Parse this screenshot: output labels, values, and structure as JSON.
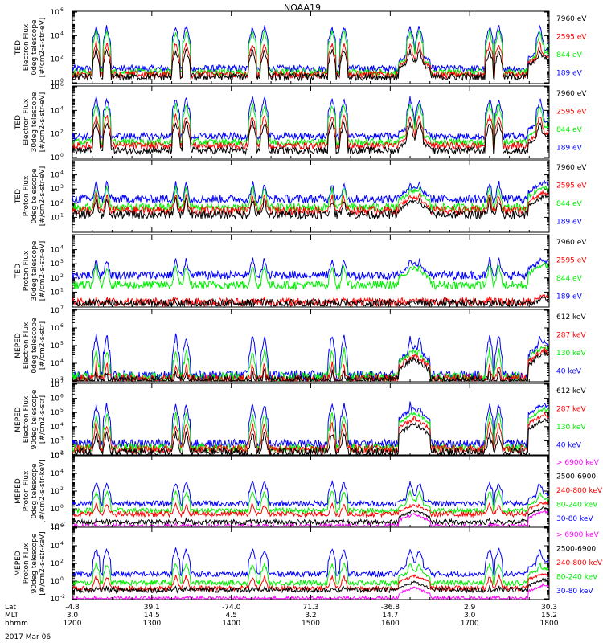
{
  "title": "NOAA19",
  "date_label": "2017 Mar 06",
  "colors": {
    "black": "#000000",
    "red": "#ff0000",
    "green": "#00ee00",
    "blue": "#0000ff",
    "magenta": "#ff00ff",
    "dark_red": "#cc0000"
  },
  "x_axis": {
    "row_labels": [
      "Lat",
      "MLT",
      "hhmm"
    ],
    "ticks": [
      {
        "lat": "-4.8",
        "mlt": "3.0",
        "hhmm": "1200"
      },
      {
        "lat": "39.1",
        "mlt": "14.5",
        "hhmm": "1300"
      },
      {
        "lat": "-74.0",
        "mlt": "4.5",
        "hhmm": "1400"
      },
      {
        "lat": "71.3",
        "mlt": "3.2",
        "hhmm": "1500"
      },
      {
        "lat": "-36.8",
        "mlt": "14.7",
        "hhmm": "1600"
      },
      {
        "lat": "2.9",
        "mlt": "3.0",
        "hhmm": "1700"
      },
      {
        "lat": "30.3",
        "mlt": "15.2",
        "hhmm": "1800"
      }
    ]
  },
  "chart_data": [
    {
      "type": "line",
      "ylabel": [
        "TED",
        "Electron Flux",
        "0deg telescope",
        "[#/cm2-s-str-eV]"
      ],
      "ylim": [
        1,
        1000000
      ],
      "log": true,
      "ytick_exps": [
        0,
        2,
        4,
        6
      ],
      "series": [
        {
          "name": "7960 eV",
          "color": "#000000"
        },
        {
          "name": "2595 eV",
          "color": "#ff0000"
        },
        {
          "name": "844 eV",
          "color": "#00ee00"
        },
        {
          "name": "189 eV",
          "color": "#0000ff"
        }
      ],
      "profile": {
        "peaks_minutes": [
          18,
          26,
          78,
          86,
          136,
          145,
          196,
          205,
          255,
          262,
          315,
          322,
          353,
          362
        ],
        "base_log": [
          0.5,
          0.7,
          0.9,
          1.2
        ],
        "peak_log": [
          2.8,
          3.4,
          4.4,
          4.8
        ],
        "bump_log": [
          1.9,
          2.1,
          2.3,
          2.6
        ]
      }
    },
    {
      "type": "line",
      "ylabel": [
        "TED",
        "Electron Flux",
        "30deg telescope",
        "[#/cm2-s-str-eV]"
      ],
      "ylim": [
        1,
        1000000
      ],
      "log": true,
      "ytick_exps": [
        0,
        2,
        4,
        6
      ],
      "series": [
        {
          "name": "7960 eV",
          "color": "#000000"
        },
        {
          "name": "2595 eV",
          "color": "#ff0000"
        },
        {
          "name": "844 eV",
          "color": "#00ee00"
        },
        {
          "name": "189 eV",
          "color": "#0000ff"
        }
      ],
      "profile": {
        "peaks_minutes": [
          18,
          26,
          78,
          86,
          136,
          145,
          196,
          205,
          255,
          262,
          315,
          322,
          353,
          362
        ],
        "base_log": [
          0.6,
          1.0,
          1.3,
          1.8
        ],
        "peak_log": [
          3.0,
          3.6,
          4.5,
          5.0
        ],
        "bump_log": [
          1.6,
          1.9,
          2.3,
          2.8
        ]
      }
    },
    {
      "type": "line",
      "ylabel": [
        "TED",
        "Proton Flux",
        "0deg telescope",
        "[#/cm2-s-str-eV]"
      ],
      "ylim": [
        1,
        100000
      ],
      "log": true,
      "ytick_exps": [
        1,
        2,
        3,
        4
      ],
      "series": [
        {
          "name": "7960 eV",
          "color": "#000000"
        },
        {
          "name": "2595 eV",
          "color": "#ff0000"
        },
        {
          "name": "844 eV",
          "color": "#00ee00"
        },
        {
          "name": "189 eV",
          "color": "#0000ff"
        }
      ],
      "profile": {
        "peaks_minutes": [
          18,
          26,
          78,
          86,
          136,
          145,
          196,
          205,
          255,
          262,
          315,
          322,
          353,
          362
        ],
        "base_log": [
          1.2,
          1.5,
          1.7,
          2.3
        ],
        "peak_log": [
          2.3,
          2.6,
          3.1,
          3.5
        ],
        "bump_log": [
          2.2,
          2.5,
          2.9,
          3.2
        ]
      }
    },
    {
      "type": "line",
      "ylabel": [
        "TED",
        "Proton Flux",
        "30deg telescope",
        "[#/cm2-s-str-eV]"
      ],
      "ylim": [
        1,
        100000
      ],
      "log": true,
      "ytick_exps": [
        1,
        2,
        3,
        4
      ],
      "series": [
        {
          "name": "7960 eV",
          "color": "#000000"
        },
        {
          "name": "2595 eV",
          "color": "#ff0000"
        },
        {
          "name": "844 eV",
          "color": "#00ee00"
        },
        {
          "name": "189 eV",
          "color": "#0000ff"
        }
      ],
      "profile": {
        "peaks_minutes": [
          18,
          26,
          78,
          86,
          136,
          145,
          196,
          205,
          255,
          262,
          315,
          322,
          353,
          362
        ],
        "base_log": [
          0.2,
          0.3,
          1.5,
          2.2
        ],
        "peak_log": [
          0.4,
          0.6,
          2.9,
          3.4
        ],
        "bump_log": [
          0.3,
          0.5,
          2.7,
          3.0
        ]
      }
    },
    {
      "type": "line",
      "ylabel": [
        "MEPED",
        "Electron Flux",
        "0deg telescope",
        "[#/cm2-s-str]"
      ],
      "ylim": [
        1000,
        10000000
      ],
      "log": true,
      "ytick_exps": [
        3,
        4,
        5,
        6,
        7
      ],
      "series": [
        {
          "name": "612 keV",
          "color": "#000000"
        },
        {
          "name": "287 keV",
          "color": "#ff0000"
        },
        {
          "name": "130 keV",
          "color": "#00ee00"
        },
        {
          "name": "40 keV",
          "color": "#0000ff"
        }
      ],
      "profile": {
        "peaks_minutes": [
          18,
          26,
          78,
          86,
          136,
          145,
          196,
          205,
          255,
          262,
          315,
          322,
          353,
          362
        ],
        "base_log": [
          3.0,
          3.1,
          3.2,
          3.3
        ],
        "peak_log": [
          3.6,
          4.0,
          4.8,
          5.6
        ],
        "bump_log": [
          4.3,
          4.5,
          4.7,
          4.9
        ]
      }
    },
    {
      "type": "line",
      "ylabel": [
        "MEPED",
        "Electron Flux",
        "90deg telescope",
        "[#/cm2-s-str]"
      ],
      "ylim": [
        100,
        10000000
      ],
      "log": true,
      "ytick_exps": [
        2,
        3,
        4,
        5,
        6,
        7
      ],
      "series": [
        {
          "name": "612 keV",
          "color": "#000000"
        },
        {
          "name": "287 keV",
          "color": "#ff0000"
        },
        {
          "name": "130 keV",
          "color": "#00ee00"
        },
        {
          "name": "40 keV",
          "color": "#0000ff"
        }
      ],
      "profile": {
        "peaks_minutes": [
          18,
          26,
          78,
          86,
          136,
          145,
          196,
          205,
          255,
          262,
          315,
          322,
          353,
          362
        ],
        "base_log": [
          2.2,
          2.4,
          2.5,
          2.8
        ],
        "peak_log": [
          3.6,
          4.2,
          4.9,
          5.6
        ],
        "bump_log": [
          4.2,
          4.6,
          5.0,
          5.3
        ]
      }
    },
    {
      "type": "line",
      "ylabel": [
        "MEPED",
        "Proton Flux",
        "0deg telescope",
        "[#/cm2-s-str-keV]"
      ],
      "ylim": [
        0.01,
        1000000
      ],
      "log": true,
      "ytick_exps": [
        -2,
        0,
        2,
        4,
        6
      ],
      "series": [
        {
          "name": "> 6900 keV",
          "color": "#ff00ff"
        },
        {
          "name": "2500-6900",
          "color": "#000000"
        },
        {
          "name": "240-800 keV",
          "color": "#ff0000"
        },
        {
          "name": "80-240 keV",
          "color": "#00ee00"
        },
        {
          "name": "30-80 keV",
          "color": "#0000ff"
        }
      ],
      "profile": {
        "peaks_minutes": [
          18,
          26,
          78,
          86,
          136,
          145,
          196,
          205,
          255,
          262,
          315,
          322,
          353,
          362
        ],
        "base_log": [
          -2.0,
          -1.5,
          -0.6,
          -0.2,
          0.6
        ],
        "peak_log": [
          -1.8,
          -1.2,
          0.6,
          2.0,
          3.0
        ],
        "bump_log": [
          -0.6,
          -0.2,
          0.4,
          0.9,
          1.5
        ]
      }
    },
    {
      "type": "line",
      "ylabel": [
        "MEPED",
        "Proton Flux",
        "90deg telescope",
        "[#/cm2-s-str-keV]"
      ],
      "ylim": [
        0.01,
        1000000
      ],
      "log": true,
      "ytick_exps": [
        -2,
        0,
        2,
        4,
        6
      ],
      "series": [
        {
          "name": "> 6900 keV",
          "color": "#ff00ff"
        },
        {
          "name": "2500-6900",
          "color": "#000000"
        },
        {
          "name": "240-800 keV",
          "color": "#ff0000"
        },
        {
          "name": "80-240 keV",
          "color": "#00ee00"
        },
        {
          "name": "30-80 keV",
          "color": "#0000ff"
        }
      ],
      "profile": {
        "peaks_minutes": [
          18,
          26,
          78,
          86,
          136,
          145,
          196,
          205,
          255,
          262,
          315,
          322,
          353,
          362
        ],
        "base_log": [
          -2.0,
          -1.0,
          -0.8,
          -0.2,
          0.8
        ],
        "peak_log": [
          -1.8,
          -0.6,
          0.6,
          2.0,
          3.6
        ],
        "bump_log": [
          -0.7,
          -0.1,
          0.6,
          1.2,
          2.0
        ]
      }
    }
  ]
}
